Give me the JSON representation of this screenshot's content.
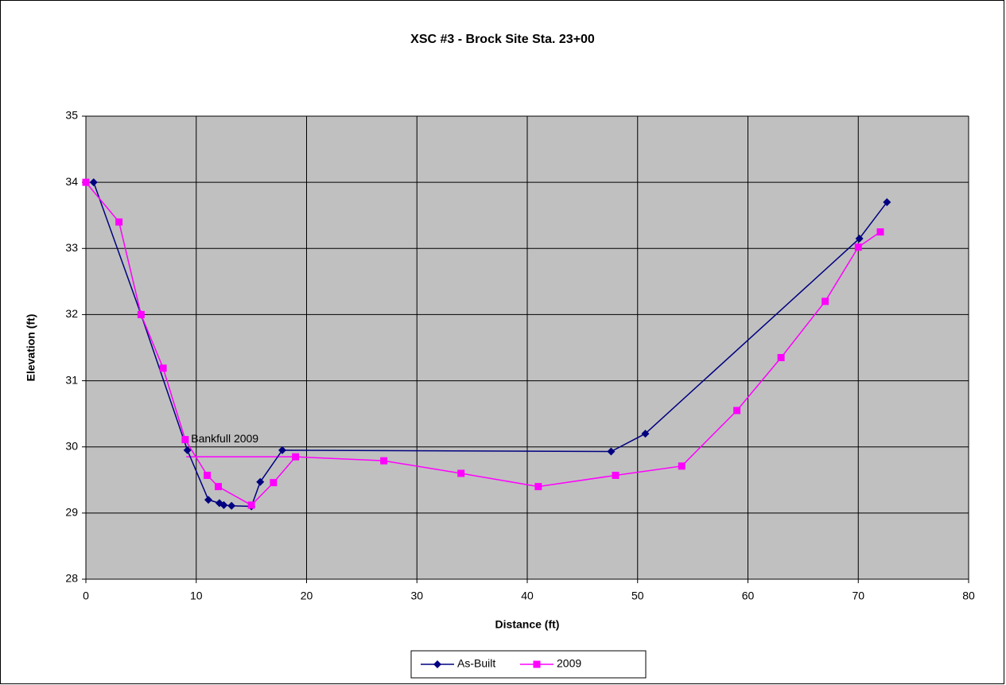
{
  "chart_data": {
    "type": "line",
    "title": "XSC #3 - Brock Site Sta. 23+00",
    "x_label": "Distance (ft)",
    "y_label": "Elevation (ft)",
    "xlim": [
      0,
      80
    ],
    "xticks": [
      0,
      10,
      20,
      30,
      40,
      50,
      60,
      70,
      80
    ],
    "ylim": [
      28,
      35
    ],
    "yticks": [
      28,
      29,
      30,
      31,
      32,
      33,
      34,
      35
    ],
    "grid": true,
    "legend": "bottom",
    "series": [
      {
        "name": "As-Built",
        "color": "#000080",
        "marker": "diamond",
        "x": [
          0.7,
          5.0,
          9.2,
          11.1,
          12.1,
          12.5,
          13.2,
          15.0,
          15.8,
          17.8,
          47.6,
          50.7,
          70.1,
          72.6
        ],
        "values": [
          34.0,
          32.0,
          29.95,
          29.2,
          29.15,
          29.12,
          29.11,
          29.1,
          29.47,
          29.95,
          29.93,
          30.2,
          33.15,
          33.7
        ]
      },
      {
        "name": "2009",
        "color": "#ff00ff",
        "marker": "square",
        "x": [
          0,
          3,
          5,
          7,
          9,
          11,
          12,
          15,
          17,
          19,
          27,
          34,
          41,
          48,
          54,
          59,
          63,
          67,
          70,
          72
        ],
        "values": [
          34.0,
          33.4,
          32.0,
          31.19,
          30.11,
          29.57,
          29.4,
          29.12,
          29.46,
          29.85,
          29.79,
          29.6,
          29.4,
          29.57,
          29.71,
          30.55,
          31.35,
          32.2,
          33.02,
          33.25
        ]
      }
    ],
    "annotations": [
      {
        "text": "Bankfull 2009",
        "x": [
          9.1,
          19
        ],
        "y": 29.85,
        "color": "#ff00ff"
      }
    ]
  }
}
